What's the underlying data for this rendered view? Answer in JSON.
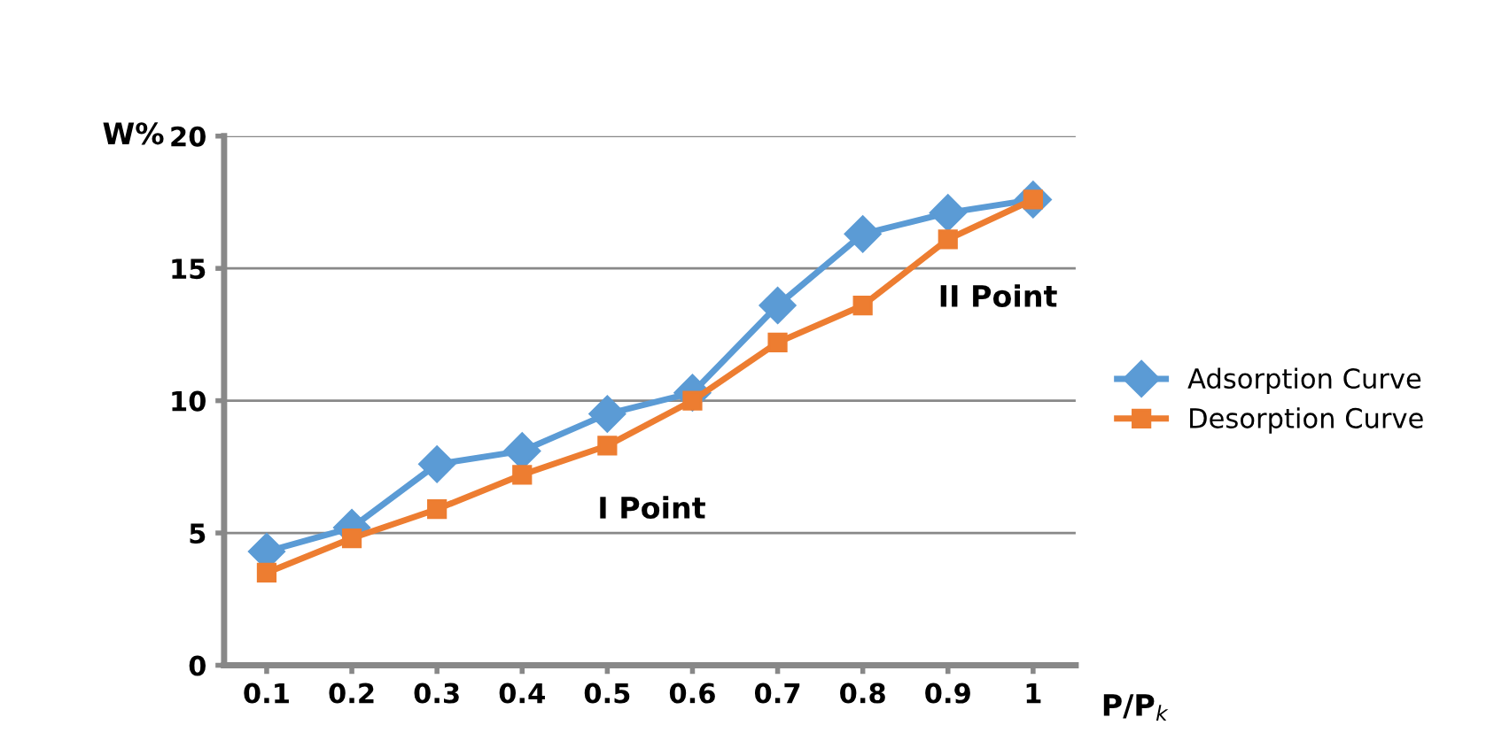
{
  "chart_data": {
    "type": "line",
    "ylabel": "W%",
    "xlabel": "P/P$_{k}$",
    "categories": [
      "0.1",
      "0.2",
      "0.3",
      "0.4",
      "0.5",
      "0.6",
      "0.7",
      "0.8",
      "0.9",
      "1"
    ],
    "series": [
      {
        "name": "Adsorption Curve",
        "color": "#5b9bd5",
        "marker": "diamond",
        "values": [
          4.3,
          5.2,
          7.6,
          8.1,
          9.5,
          10.3,
          13.6,
          16.3,
          17.1,
          17.6
        ]
      },
      {
        "name": "Desorption Curve",
        "color": "#ed7d31",
        "marker": "square",
        "values": [
          3.5,
          4.8,
          5.9,
          7.2,
          8.3,
          10.0,
          12.2,
          13.6,
          16.1,
          17.6
        ]
      }
    ],
    "ylim": [
      0,
      20
    ],
    "yticks": [
      0,
      5,
      10,
      15,
      20
    ],
    "grid": "y",
    "legend": "right",
    "annotations": [
      {
        "text": "I Point",
        "x": "0.5",
        "y": 9
      },
      {
        "text": "II Point",
        "x": "0.9",
        "y": 17
      }
    ]
  }
}
